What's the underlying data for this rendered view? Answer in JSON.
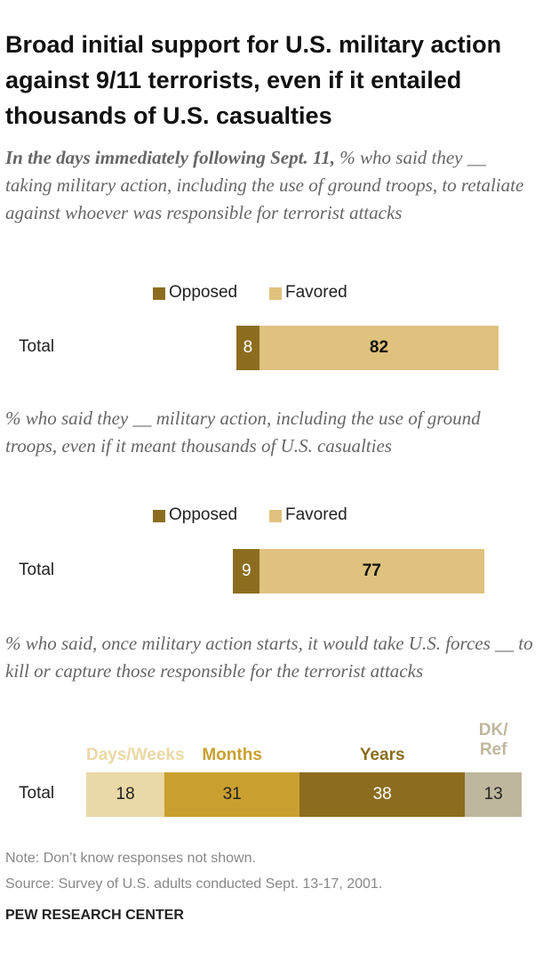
{
  "title": "Broad initial support for U.S. military action against 9/11 terrorists, even if it entailed thousands of U.S. casualties",
  "chart_data": [
    {
      "type": "diverging-bar",
      "subtitle_lead": "In the days immediately following Sept. 11,",
      "subtitle": "% who said they __ taking military action, including the use of ground troops, to retaliate against whoever was responsible for terrorist attacks",
      "categories": [
        "Total"
      ],
      "series": [
        {
          "name": "Opposed",
          "color": "#8c6d1f",
          "values": [
            8
          ]
        },
        {
          "name": "Favored",
          "color": "#dfc27d",
          "values": [
            82
          ]
        }
      ]
    },
    {
      "type": "diverging-bar",
      "subtitle": "% who said they __ military action, including the use of ground troops, even if it meant thousands of U.S. casualties",
      "categories": [
        "Total"
      ],
      "series": [
        {
          "name": "Opposed",
          "color": "#8c6d1f",
          "values": [
            9
          ]
        },
        {
          "name": "Favored",
          "color": "#dfc27d",
          "values": [
            77
          ]
        }
      ]
    },
    {
      "type": "stacked-bar",
      "subtitle": "% who said, once military action starts, it would take U.S. forces __ to kill or capture those responsible for the terrorist attacks",
      "categories": [
        "Total"
      ],
      "series": [
        {
          "name": "Days/Weeks",
          "color": "#ead8a6",
          "values": [
            18
          ]
        },
        {
          "name": "Months",
          "color": "#c9a02f",
          "values": [
            31
          ]
        },
        {
          "name": "Years",
          "color": "#8c6d1f",
          "values": [
            38
          ]
        },
        {
          "name": "DK/Ref",
          "color": "#bfb79d",
          "values": [
            13
          ]
        }
      ]
    }
  ],
  "note": "Note: Don’t know responses not shown.",
  "source": "Source: Survey of U.S. adults conducted Sept. 13-17, 2001.",
  "footer": "PEW RESEARCH CENTER"
}
